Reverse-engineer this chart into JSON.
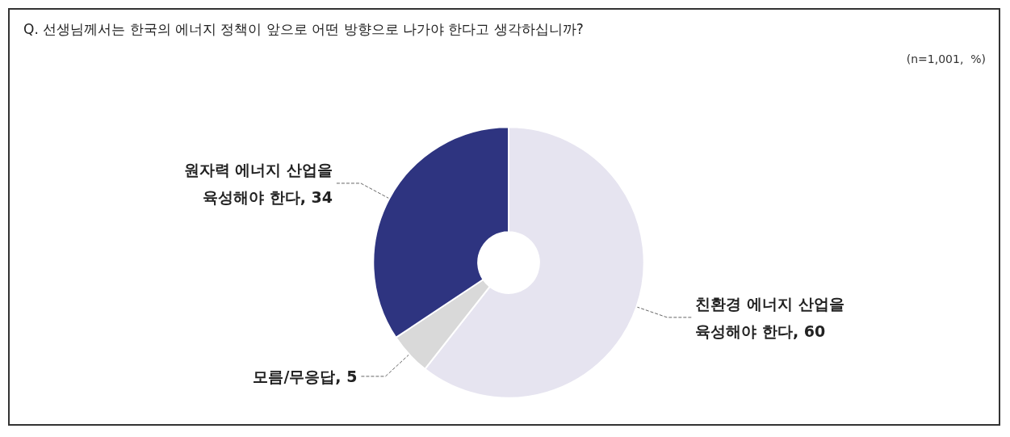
{
  "chart_data": {
    "type": "donut",
    "title": "Q. 선생님께서는 한국의 에너지 정책이 앞으로 어떤 방향으로 나가야 한다고 생각하십니까?",
    "annotations": [
      "(n=1,001,  %)"
    ],
    "categories": [
      "친환경 에너지 산업을 육성해야 한다",
      "모름/무응답",
      "원자력 에너지 산업을 육성해야 한다"
    ],
    "values": [
      60,
      5,
      34
    ],
    "colors": [
      "#e6e4f0",
      "#d9d9d9",
      "#2e3480"
    ],
    "value_labels": [
      ", 60",
      ", 5",
      ", 34"
    ],
    "legend": false
  }
}
